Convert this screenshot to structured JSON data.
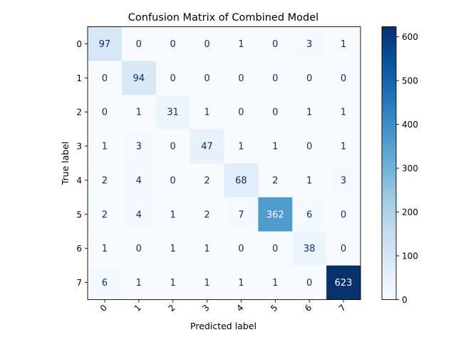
{
  "chart_data": {
    "type": "heatmap",
    "title": "Confusion Matrix of Combined Model",
    "xlabel": "Predicted label",
    "ylabel": "True label",
    "x_categories": [
      "0",
      "1",
      "2",
      "3",
      "4",
      "5",
      "6",
      "7"
    ],
    "y_categories": [
      "0",
      "1",
      "2",
      "3",
      "4",
      "5",
      "6",
      "7"
    ],
    "matrix": [
      [
        97,
        0,
        0,
        0,
        1,
        0,
        3,
        1
      ],
      [
        0,
        94,
        0,
        0,
        0,
        0,
        0,
        0
      ],
      [
        0,
        1,
        31,
        1,
        0,
        0,
        1,
        1
      ],
      [
        1,
        3,
        0,
        47,
        1,
        1,
        0,
        1
      ],
      [
        2,
        4,
        0,
        2,
        68,
        2,
        1,
        3
      ],
      [
        2,
        4,
        1,
        2,
        7,
        362,
        6,
        0
      ],
      [
        1,
        0,
        1,
        1,
        0,
        0,
        38,
        0
      ],
      [
        6,
        1,
        1,
        1,
        1,
        1,
        0,
        623
      ]
    ],
    "colorbar": {
      "min": 0,
      "max": 623,
      "ticks": [
        0,
        100,
        200,
        300,
        400,
        500,
        600
      ],
      "colormap": "Blues"
    },
    "x_tick_rotation": "45deg",
    "grid": false
  }
}
